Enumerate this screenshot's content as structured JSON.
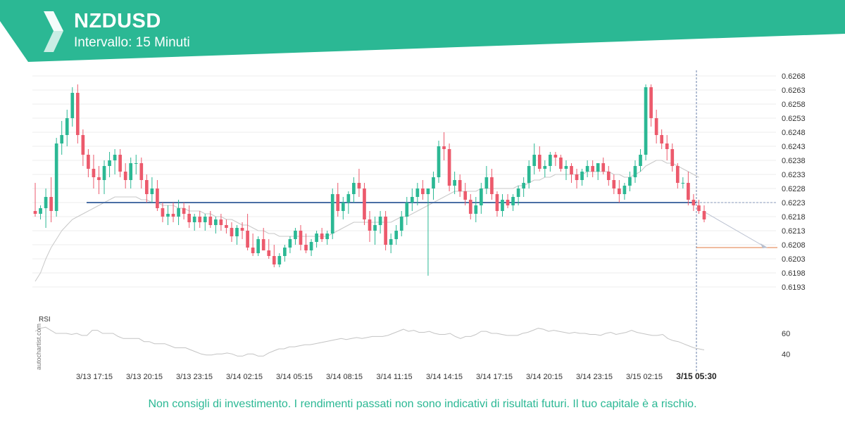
{
  "header": {
    "symbol": "NZDUSD",
    "interval": "Intervallo: 15 Minuti",
    "brand_color": "#2bb894"
  },
  "disclaimer": "Non consigli di investimento. I rendimenti passati non sono indicativi di risultati futuri. Il tuo capitale è a rischio.",
  "watermark": "autochartist.com",
  "chart_data": [
    {
      "type": "candlestick",
      "title": "NZDUSD",
      "ylim": [
        0.6188,
        0.627
      ],
      "y_ticks": [
        "0.6268",
        "0.6263",
        "0.6258",
        "0.6253",
        "0.6248",
        "0.6243",
        "0.6238",
        "0.6233",
        "0.6228",
        "0.6223",
        "0.6218",
        "0.6213",
        "0.6208",
        "0.6203",
        "0.6198",
        "0.6193"
      ],
      "x_ticks": [
        "3/13 17:15",
        "3/13 20:15",
        "3/13 23:15",
        "3/14 02:15",
        "3/14 05:15",
        "3/14 08:15",
        "3/14 11:15",
        "3/14 14:15",
        "3/14 17:15",
        "3/14 20:15",
        "3/14 23:15",
        "3/15 02:15"
      ],
      "current_time_label": "3/15 05:30",
      "candles": [
        [
          0.622,
          0.623,
          0.6218,
          0.6219
        ],
        [
          0.6219,
          0.6222,
          0.6217,
          0.6221
        ],
        [
          0.6221,
          0.6228,
          0.6214,
          0.6225
        ],
        [
          0.6225,
          0.6232,
          0.6216,
          0.622
        ],
        [
          0.622,
          0.6246,
          0.6218,
          0.6244
        ],
        [
          0.6244,
          0.6252,
          0.624,
          0.6247
        ],
        [
          0.6247,
          0.6256,
          0.6243,
          0.6253
        ],
        [
          0.6253,
          0.6264,
          0.625,
          0.6262
        ],
        [
          0.6262,
          0.6265,
          0.6244,
          0.6247
        ],
        [
          0.6247,
          0.6249,
          0.6236,
          0.624
        ],
        [
          0.624,
          0.6242,
          0.6232,
          0.6235
        ],
        [
          0.6235,
          0.624,
          0.6228,
          0.6232
        ],
        [
          0.6232,
          0.6236,
          0.6226,
          0.6231
        ],
        [
          0.6231,
          0.6238,
          0.6226,
          0.6236
        ],
        [
          0.6236,
          0.6241,
          0.6232,
          0.6238
        ],
        [
          0.6238,
          0.6242,
          0.6233,
          0.624
        ],
        [
          0.624,
          0.6242,
          0.6232,
          0.6234
        ],
        [
          0.6234,
          0.6237,
          0.6228,
          0.6231
        ],
        [
          0.6231,
          0.6239,
          0.6228,
          0.6237
        ],
        [
          0.6237,
          0.624,
          0.6233,
          0.6237
        ],
        [
          0.6237,
          0.6239,
          0.6228,
          0.6231
        ],
        [
          0.6231,
          0.6233,
          0.6223,
          0.6226
        ],
        [
          0.6226,
          0.6232,
          0.6223,
          0.6228
        ],
        [
          0.6228,
          0.6231,
          0.622,
          0.6221
        ],
        [
          0.6221,
          0.6223,
          0.6216,
          0.6218
        ],
        [
          0.6218,
          0.6222,
          0.6215,
          0.6219
        ],
        [
          0.6219,
          0.6223,
          0.6216,
          0.6218
        ],
        [
          0.6218,
          0.6224,
          0.6215,
          0.6221
        ],
        [
          0.6221,
          0.6223,
          0.6217,
          0.6219
        ],
        [
          0.6219,
          0.6222,
          0.6214,
          0.6216
        ],
        [
          0.6216,
          0.6219,
          0.6213,
          0.6218
        ],
        [
          0.6218,
          0.622,
          0.6214,
          0.6216
        ],
        [
          0.6216,
          0.6219,
          0.6213,
          0.6218
        ],
        [
          0.6218,
          0.622,
          0.6214,
          0.6215
        ],
        [
          0.6215,
          0.6218,
          0.6212,
          0.6217
        ],
        [
          0.6217,
          0.6219,
          0.6213,
          0.6215
        ],
        [
          0.6215,
          0.6217,
          0.6212,
          0.6214
        ],
        [
          0.6214,
          0.6216,
          0.6209,
          0.6211
        ],
        [
          0.6211,
          0.6215,
          0.6208,
          0.6214
        ],
        [
          0.6214,
          0.6216,
          0.621,
          0.6213
        ],
        [
          0.6213,
          0.6219,
          0.6206,
          0.6207
        ],
        [
          0.6207,
          0.6212,
          0.6204,
          0.6205
        ],
        [
          0.6205,
          0.6211,
          0.6204,
          0.621
        ],
        [
          0.621,
          0.6214,
          0.6206,
          0.6206
        ],
        [
          0.6206,
          0.621,
          0.6203,
          0.6204
        ],
        [
          0.6204,
          0.6208,
          0.62,
          0.6201
        ],
        [
          0.6201,
          0.6205,
          0.62,
          0.6204
        ],
        [
          0.6204,
          0.6208,
          0.6202,
          0.6207
        ],
        [
          0.6207,
          0.6211,
          0.6205,
          0.621
        ],
        [
          0.621,
          0.6214,
          0.6208,
          0.6213
        ],
        [
          0.6213,
          0.6215,
          0.6206,
          0.6208
        ],
        [
          0.6208,
          0.6212,
          0.6205,
          0.6206
        ],
        [
          0.6206,
          0.621,
          0.6204,
          0.6209
        ],
        [
          0.6209,
          0.6213,
          0.6207,
          0.6212
        ],
        [
          0.6212,
          0.6214,
          0.6209,
          0.621
        ],
        [
          0.621,
          0.6213,
          0.6208,
          0.6212
        ],
        [
          0.6212,
          0.6228,
          0.621,
          0.6226
        ],
        [
          0.6226,
          0.623,
          0.6218,
          0.622
        ],
        [
          0.622,
          0.6225,
          0.6217,
          0.6223
        ],
        [
          0.6223,
          0.6227,
          0.6219,
          0.6226
        ],
        [
          0.6226,
          0.6232,
          0.6223,
          0.623
        ],
        [
          0.623,
          0.6235,
          0.6225,
          0.6228
        ],
        [
          0.6228,
          0.623,
          0.6215,
          0.6217
        ],
        [
          0.6217,
          0.622,
          0.6209,
          0.6213
        ],
        [
          0.6213,
          0.6218,
          0.6208,
          0.6215
        ],
        [
          0.6215,
          0.622,
          0.6212,
          0.6218
        ],
        [
          0.6218,
          0.622,
          0.6206,
          0.6208
        ],
        [
          0.6208,
          0.6212,
          0.6205,
          0.621
        ],
        [
          0.621,
          0.6215,
          0.6208,
          0.6213
        ],
        [
          0.6213,
          0.622,
          0.6211,
          0.6218
        ],
        [
          0.6218,
          0.6225,
          0.6215,
          0.6223
        ],
        [
          0.6223,
          0.6228,
          0.622,
          0.6225
        ],
        [
          0.6225,
          0.623,
          0.6222,
          0.6228
        ],
        [
          0.6228,
          0.6231,
          0.6224,
          0.6226
        ],
        [
          0.6226,
          0.6228,
          0.6197,
          0.6228
        ],
        [
          0.6228,
          0.6234,
          0.6224,
          0.6232
        ],
        [
          0.6232,
          0.6245,
          0.623,
          0.6243
        ],
        [
          0.6243,
          0.6248,
          0.6238,
          0.6242
        ],
        [
          0.6242,
          0.6244,
          0.6227,
          0.6229
        ],
        [
          0.6229,
          0.6234,
          0.6226,
          0.6231
        ],
        [
          0.6231,
          0.6233,
          0.6225,
          0.6227
        ],
        [
          0.6227,
          0.623,
          0.6222,
          0.6224
        ],
        [
          0.6224,
          0.6226,
          0.6217,
          0.6219
        ],
        [
          0.6219,
          0.6225,
          0.6216,
          0.6222
        ],
        [
          0.6222,
          0.623,
          0.6219,
          0.6228
        ],
        [
          0.6228,
          0.6236,
          0.6226,
          0.6232
        ],
        [
          0.6232,
          0.6235,
          0.6224,
          0.6226
        ],
        [
          0.6226,
          0.6227,
          0.6218,
          0.622
        ],
        [
          0.622,
          0.6226,
          0.6218,
          0.6224
        ],
        [
          0.6224,
          0.6226,
          0.6221,
          0.6222
        ],
        [
          0.6222,
          0.6226,
          0.622,
          0.6225
        ],
        [
          0.6225,
          0.6229,
          0.6222,
          0.6228
        ],
        [
          0.6228,
          0.6232,
          0.6225,
          0.623
        ],
        [
          0.623,
          0.6238,
          0.6228,
          0.6236
        ],
        [
          0.6236,
          0.6244,
          0.6233,
          0.624
        ],
        [
          0.624,
          0.6243,
          0.6234,
          0.6235
        ],
        [
          0.6235,
          0.6238,
          0.6232,
          0.6236
        ],
        [
          0.6236,
          0.6241,
          0.6234,
          0.624
        ],
        [
          0.624,
          0.6241,
          0.6236,
          0.6239
        ],
        [
          0.6239,
          0.624,
          0.6234,
          0.6235
        ],
        [
          0.6235,
          0.6238,
          0.6231,
          0.6236
        ],
        [
          0.6236,
          0.6237,
          0.623,
          0.6233
        ],
        [
          0.6233,
          0.6235,
          0.6228,
          0.6231
        ],
        [
          0.6231,
          0.6235,
          0.6229,
          0.6234
        ],
        [
          0.6234,
          0.6238,
          0.6232,
          0.6236
        ],
        [
          0.6236,
          0.6238,
          0.6232,
          0.6234
        ],
        [
          0.6234,
          0.6237,
          0.6231,
          0.6237
        ],
        [
          0.6237,
          0.6239,
          0.6233,
          0.6234
        ],
        [
          0.6234,
          0.6236,
          0.6229,
          0.6231
        ],
        [
          0.6231,
          0.6233,
          0.6226,
          0.6228
        ],
        [
          0.6228,
          0.6231,
          0.6223,
          0.6226
        ],
        [
          0.6226,
          0.623,
          0.6224,
          0.6229
        ],
        [
          0.6229,
          0.6234,
          0.6227,
          0.6232
        ],
        [
          0.6232,
          0.6238,
          0.623,
          0.6236
        ],
        [
          0.6236,
          0.6242,
          0.6234,
          0.624
        ],
        [
          0.624,
          0.6265,
          0.6238,
          0.6264
        ],
        [
          0.6264,
          0.6265,
          0.625,
          0.6253
        ],
        [
          0.6253,
          0.6256,
          0.6244,
          0.6247
        ],
        [
          0.6247,
          0.6249,
          0.6242,
          0.6244
        ],
        [
          0.6244,
          0.6247,
          0.6238,
          0.6242
        ],
        [
          0.6242,
          0.6244,
          0.6234,
          0.6236
        ],
        [
          0.6236,
          0.6237,
          0.6228,
          0.623
        ],
        [
          0.623,
          0.6232,
          0.6228,
          0.623
        ],
        [
          0.623,
          0.6234,
          0.6222,
          0.6224
        ],
        [
          0.6224,
          0.6226,
          0.622,
          0.6222
        ],
        [
          0.6222,
          0.6224,
          0.6219,
          0.622
        ],
        [
          0.622,
          0.6222,
          0.6216,
          0.6217
        ]
      ],
      "moving_average": [
        0.6195,
        0.6198,
        0.6203,
        0.6207,
        0.621,
        0.6213,
        0.6215,
        0.6217,
        0.6218,
        0.6219,
        0.622,
        0.6221,
        0.6222,
        0.6223,
        0.6224,
        0.6225,
        0.6225,
        0.6225,
        0.6225,
        0.6225,
        0.6224,
        0.6224,
        0.6223,
        0.6223,
        0.6222,
        0.6222,
        0.6222,
        0.6221,
        0.6221,
        0.622,
        0.622,
        0.622,
        0.6219,
        0.6219,
        0.6218,
        0.6218,
        0.6217,
        0.6217,
        0.6216,
        0.6215,
        0.6215,
        0.6214,
        0.6213,
        0.6213,
        0.6212,
        0.6212,
        0.6211,
        0.6211,
        0.6211,
        0.6211,
        0.6211,
        0.6211,
        0.6211,
        0.6211,
        0.6211,
        0.6211,
        0.6212,
        0.6213,
        0.6214,
        0.6215,
        0.6216,
        0.6216,
        0.6216,
        0.6216,
        0.6216,
        0.6216,
        0.6216,
        0.6216,
        0.6217,
        0.6218,
        0.6218,
        0.6219,
        0.622,
        0.6221,
        0.6222,
        0.6223,
        0.6224,
        0.6225,
        0.6226,
        0.6227,
        0.6227,
        0.6227,
        0.6227,
        0.6227,
        0.6228,
        0.6228,
        0.6228,
        0.6228,
        0.6228,
        0.6228,
        0.6228,
        0.6229,
        0.6229,
        0.623,
        0.6231,
        0.6231,
        0.6232,
        0.6232,
        0.6233,
        0.6233,
        0.6233,
        0.6233,
        0.6233,
        0.6233,
        0.6234,
        0.6234,
        0.6234,
        0.6234,
        0.6234,
        0.6233,
        0.6233,
        0.6232,
        0.6232,
        0.6233,
        0.6234,
        0.6236,
        0.6237,
        0.6238,
        0.6238,
        0.6237,
        0.6237,
        0.6236,
        0.6235,
        0.6234,
        0.6233,
        0.6232
      ],
      "support_level": 0.6223,
      "target_level": 0.6207,
      "rsi": {
        "label": "RSI",
        "ylim": [
          30,
          75
        ],
        "ticks": [
          "60",
          "40"
        ],
        "values": [
          62,
          65,
          66,
          63,
          60,
          60,
          60,
          59,
          60,
          58,
          58,
          63,
          63,
          60,
          60,
          60,
          57,
          55,
          55,
          55,
          55,
          52,
          52,
          50,
          50,
          50,
          48,
          46,
          46,
          46,
          44,
          42,
          40,
          39,
          39,
          40,
          40,
          41,
          40,
          38,
          38,
          40,
          40,
          38,
          38,
          41,
          43,
          45,
          45,
          47,
          47,
          48,
          49,
          49,
          50,
          51,
          52,
          53,
          54,
          55,
          54,
          55,
          56,
          55,
          56,
          57,
          57,
          57,
          58,
          60,
          62,
          64,
          62,
          63,
          61,
          61,
          62,
          60,
          59,
          59,
          60,
          57,
          55,
          57,
          57,
          59,
          62,
          62,
          60,
          60,
          59,
          58,
          58,
          58,
          60,
          61,
          63,
          65,
          64,
          62,
          63,
          62,
          61,
          60,
          61,
          60,
          60,
          59,
          59,
          58,
          60,
          61,
          59,
          60,
          61,
          63,
          61,
          60,
          59,
          58,
          58,
          59,
          55,
          53,
          52,
          50,
          48,
          46,
          45,
          44
        ]
      }
    }
  ]
}
